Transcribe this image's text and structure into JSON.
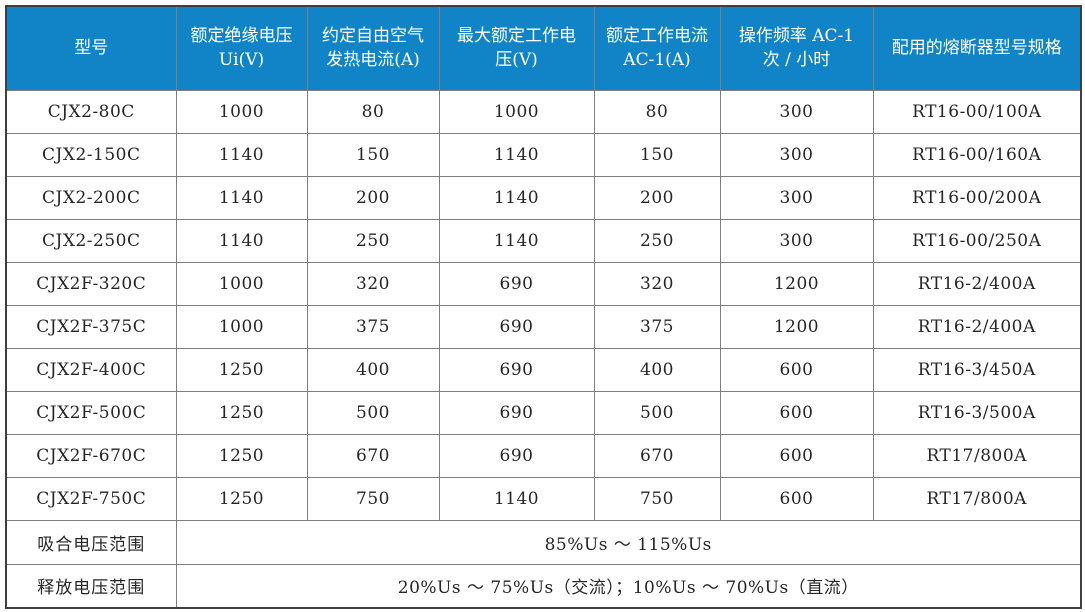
{
  "table": {
    "headers": [
      "型号",
      "额定绝缘电压 Ui(V)",
      "约定自由空气发热电流(A)",
      "最大额定工作电压(V)",
      "额定工作电流 AC-1(A)",
      "操作频率 AC-1 次 / 小时",
      "配用的熔断器型号规格"
    ],
    "rows": [
      [
        "CJX2-80C",
        "1000",
        "80",
        "1000",
        "80",
        "300",
        "RT16-00/100A"
      ],
      [
        "CJX2-150C",
        "1140",
        "150",
        "1140",
        "150",
        "300",
        "RT16-00/160A"
      ],
      [
        "CJX2-200C",
        "1140",
        "200",
        "1140",
        "200",
        "300",
        "RT16-00/200A"
      ],
      [
        "CJX2-250C",
        "1140",
        "250",
        "1140",
        "250",
        "300",
        "RT16-00/250A"
      ],
      [
        "CJX2F-320C",
        "1000",
        "320",
        "690",
        "320",
        "1200",
        "RT16-2/400A"
      ],
      [
        "CJX2F-375C",
        "1000",
        "375",
        "690",
        "375",
        "1200",
        "RT16-2/400A"
      ],
      [
        "CJX2F-400C",
        "1250",
        "400",
        "690",
        "400",
        "600",
        "RT16-3/450A"
      ],
      [
        "CJX2F-500C",
        "1250",
        "500",
        "690",
        "500",
        "600",
        "RT16-3/500A"
      ],
      [
        "CJX2F-670C",
        "1250",
        "670",
        "690",
        "670",
        "600",
        "RT17/800A"
      ],
      [
        "CJX2F-750C",
        "1250",
        "750",
        "1140",
        "750",
        "600",
        "RT17/800A"
      ]
    ],
    "footer_rows": [
      {
        "label": "吸合电压范围",
        "value": "85%Us ～ 115%Us"
      },
      {
        "label": "释放电压范围",
        "value": "20%Us ～ 75%Us（交流）；10%Us ～ 70%Us（直流）"
      }
    ],
    "colors": {
      "header_bg": "#1184C7",
      "header_text": "#FFFFFF",
      "body_text": "#262626",
      "border_inner": "#7F7F7F",
      "border_outer": "#3F3F3F",
      "row_bg": "#FFFFFF"
    }
  },
  "chart_data": {
    "type": "table",
    "title": "",
    "columns": [
      "型号",
      "额定绝缘电压 Ui(V)",
      "约定自由空气发热电流(A)",
      "最大额定工作电压(V)",
      "额定工作电流 AC-1(A)",
      "操作频率 AC-1 次 / 小时",
      "配用的熔断器型号规格"
    ],
    "rows": [
      [
        "CJX2-80C",
        1000,
        80,
        1000,
        80,
        300,
        "RT16-00/100A"
      ],
      [
        "CJX2-150C",
        1140,
        150,
        1140,
        150,
        300,
        "RT16-00/160A"
      ],
      [
        "CJX2-200C",
        1140,
        200,
        1140,
        200,
        300,
        "RT16-00/200A"
      ],
      [
        "CJX2-250C",
        1140,
        250,
        1140,
        250,
        300,
        "RT16-00/250A"
      ],
      [
        "CJX2F-320C",
        1000,
        320,
        690,
        320,
        1200,
        "RT16-2/400A"
      ],
      [
        "CJX2F-375C",
        1000,
        375,
        690,
        375,
        1200,
        "RT16-2/400A"
      ],
      [
        "CJX2F-400C",
        1250,
        400,
        690,
        400,
        600,
        "RT16-3/450A"
      ],
      [
        "CJX2F-500C",
        1250,
        500,
        690,
        500,
        600,
        "RT16-3/500A"
      ],
      [
        "CJX2F-670C",
        1250,
        670,
        690,
        670,
        600,
        "RT17/800A"
      ],
      [
        "CJX2F-750C",
        1250,
        750,
        1140,
        750,
        600,
        "RT17/800A"
      ]
    ],
    "notes": [
      "吸合电压范围: 85%Us ～ 115%Us",
      "释放电压范围: 20%Us ～ 75%Us（交流）；10%Us ～ 70%Us（直流）"
    ]
  }
}
